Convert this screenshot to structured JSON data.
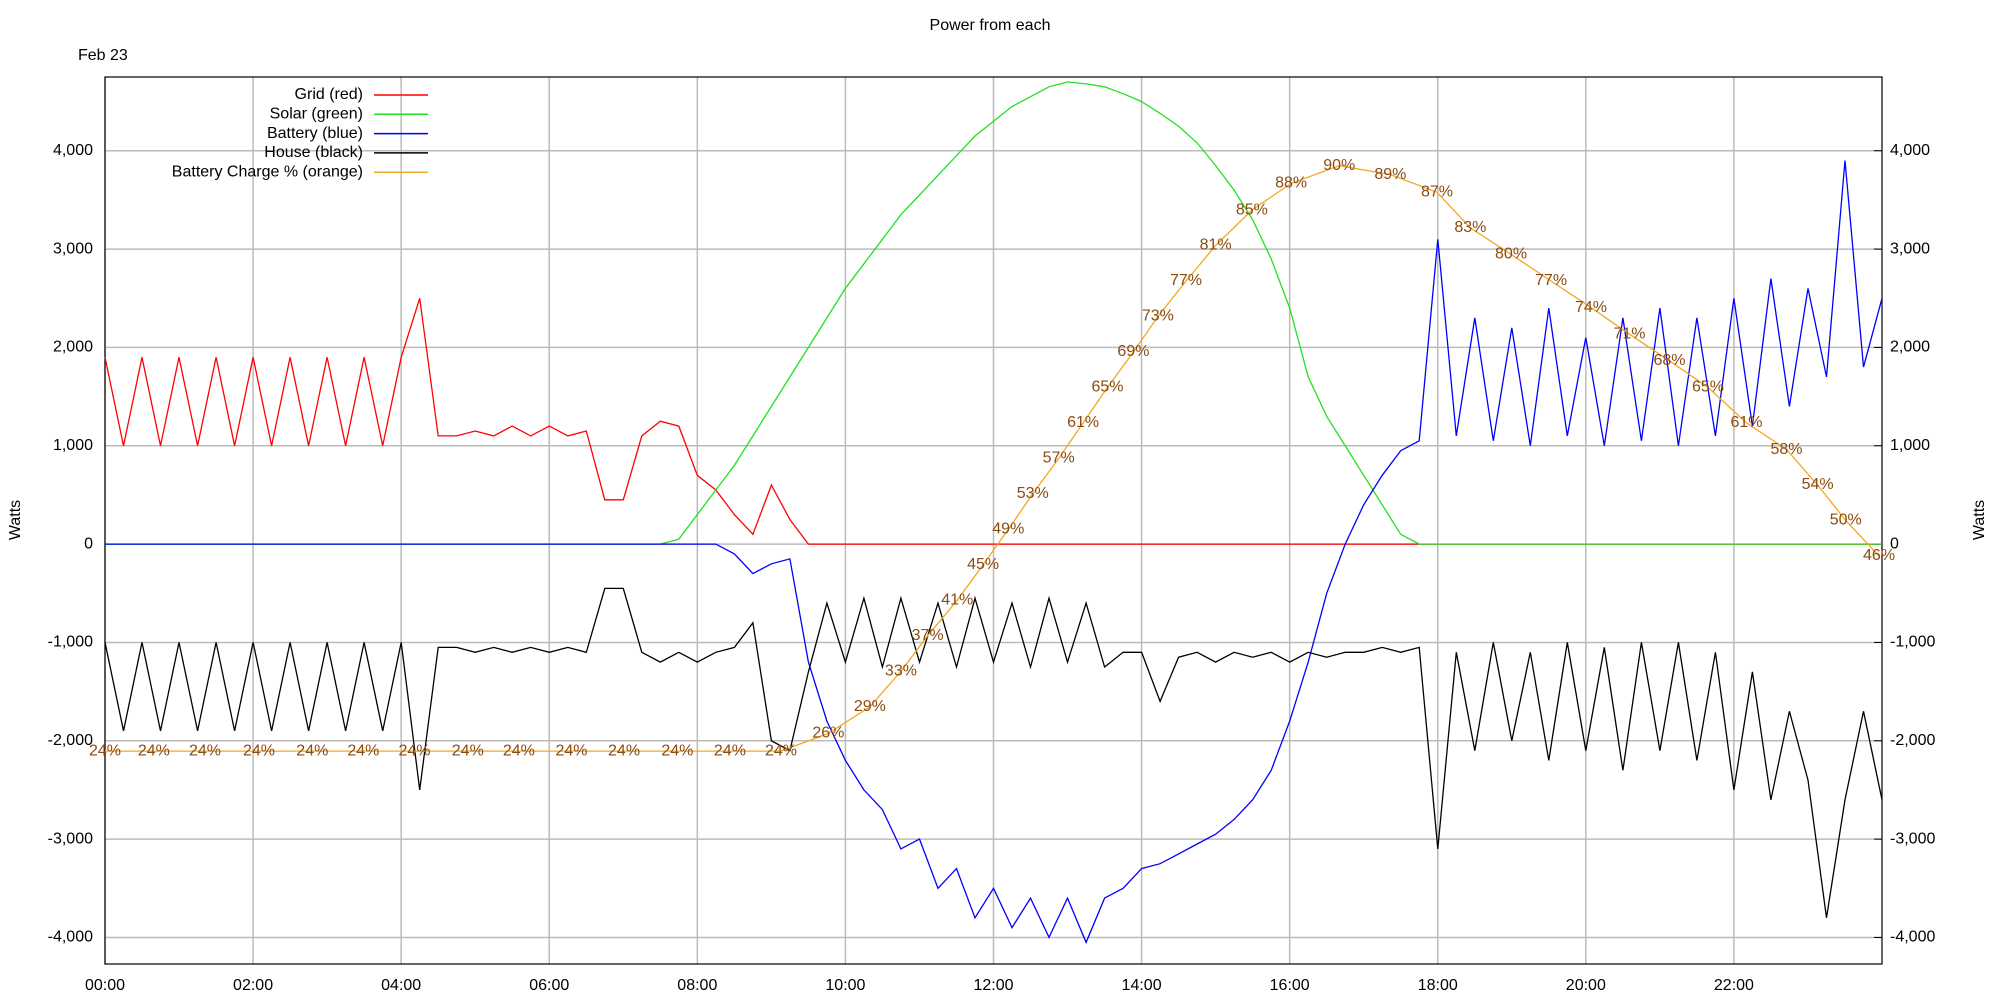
{
  "chart_data": {
    "type": "line",
    "title": "Power from each",
    "subtitle": "Feb 23",
    "ylabel": "Watts",
    "y2label": "Watts",
    "xlim": [
      0,
      24
    ],
    "xticks": [
      {
        "value": 0,
        "label": "00:00"
      },
      {
        "value": 2,
        "label": "02:00"
      },
      {
        "value": 4,
        "label": "04:00"
      },
      {
        "value": 6,
        "label": "06:00"
      },
      {
        "value": 8,
        "label": "08:00"
      },
      {
        "value": 10,
        "label": "10:00"
      },
      {
        "value": 12,
        "label": "12:00"
      },
      {
        "value": 14,
        "label": "14:00"
      },
      {
        "value": 16,
        "label": "16:00"
      },
      {
        "value": 18,
        "label": "18:00"
      },
      {
        "value": 20,
        "label": "20:00"
      },
      {
        "value": 22,
        "label": "22:00"
      }
    ],
    "ylim": [
      -4270,
      4750
    ],
    "yticks": [
      {
        "value": -4000,
        "label": "-4,000"
      },
      {
        "value": -3000,
        "label": "-3,000"
      },
      {
        "value": -2000,
        "label": "-2,000"
      },
      {
        "value": -1000,
        "label": "-1,000"
      },
      0,
      {
        "value": 1000,
        "label": "1,000"
      },
      {
        "value": 2000,
        "label": "2,000"
      },
      {
        "value": 3000,
        "label": "3,000"
      },
      {
        "value": 4000,
        "label": "4,000"
      }
    ],
    "y2lim": [
      -4270,
      4750
    ],
    "y2ticks": [
      {
        "value": -4000,
        "label": "-4,000"
      },
      {
        "value": -3000,
        "label": "-3,000"
      },
      {
        "value": -2000,
        "label": "-2,000"
      },
      {
        "value": -1000,
        "label": "-1,000"
      },
      0,
      {
        "value": 1000,
        "label": "1,000"
      },
      {
        "value": 2000,
        "label": "2,000"
      },
      {
        "value": 3000,
        "label": "3,000"
      },
      {
        "value": 4000,
        "label": "4,000"
      }
    ],
    "y3lim": [
      0,
      100
    ],
    "grid": true,
    "legend": "upper left",
    "x": [
      0,
      0.25,
      0.5,
      0.75,
      1,
      1.25,
      1.5,
      1.75,
      2,
      2.25,
      2.5,
      2.75,
      3,
      3.25,
      3.5,
      3.75,
      4,
      4.25,
      4.5,
      4.75,
      5,
      5.25,
      5.5,
      5.75,
      6,
      6.25,
      6.5,
      6.75,
      7,
      7.25,
      7.5,
      7.75,
      8,
      8.25,
      8.5,
      8.75,
      9,
      9.25,
      9.5,
      9.75,
      10,
      10.25,
      10.5,
      10.75,
      11,
      11.25,
      11.5,
      11.75,
      12,
      12.25,
      12.5,
      12.75,
      13,
      13.25,
      13.5,
      13.75,
      14,
      14.25,
      14.5,
      14.75,
      15,
      15.25,
      15.5,
      15.75,
      16,
      16.25,
      16.5,
      16.75,
      17,
      17.25,
      17.5,
      17.75,
      18,
      18.25,
      18.5,
      18.75,
      19,
      19.25,
      19.5,
      19.75,
      20,
      20.25,
      20.5,
      20.75,
      21,
      21.25,
      21.5,
      21.75,
      22,
      22.25,
      22.5,
      22.75,
      23,
      23.25,
      23.5,
      23.75,
      24
    ],
    "series": [
      {
        "name": "Grid (red)",
        "color": "#ff0000",
        "values": [
          1900,
          1000,
          1900,
          1000,
          1900,
          1000,
          1900,
          1000,
          1900,
          1000,
          1900,
          1000,
          1900,
          1000,
          1900,
          1000,
          1900,
          2500,
          1100,
          1100,
          1150,
          1100,
          1200,
          1100,
          1200,
          1100,
          1150,
          450,
          450,
          1100,
          1250,
          1200,
          700,
          550,
          300,
          100,
          600,
          250,
          0,
          0,
          0,
          0,
          0,
          0,
          0,
          0,
          0,
          0,
          0,
          0,
          0,
          0,
          0,
          0,
          0,
          0,
          0,
          0,
          0,
          0,
          0,
          0,
          0,
          0,
          0,
          0,
          0,
          0,
          0,
          0,
          0,
          0,
          0,
          0,
          0,
          0,
          0,
          0,
          0,
          0,
          0,
          0,
          0,
          0,
          0,
          0,
          0,
          0,
          0,
          0,
          0,
          0,
          0,
          0,
          0,
          0,
          0
        ]
      },
      {
        "name": "Solar (green)",
        "color": "#22e022",
        "values": [
          0,
          0,
          0,
          0,
          0,
          0,
          0,
          0,
          0,
          0,
          0,
          0,
          0,
          0,
          0,
          0,
          0,
          0,
          0,
          0,
          0,
          0,
          0,
          0,
          0,
          0,
          0,
          0,
          0,
          0,
          0,
          50,
          300,
          550,
          800,
          1100,
          1400,
          1700,
          2000,
          2300,
          2600,
          2850,
          3100,
          3350,
          3550,
          3750,
          3950,
          4150,
          4300,
          4450,
          4550,
          4650,
          4700,
          4680,
          4650,
          4580,
          4500,
          4380,
          4250,
          4080,
          3850,
          3600,
          3300,
          2900,
          2400,
          1700,
          1300,
          1000,
          700,
          400,
          100,
          0,
          0,
          0,
          0,
          0,
          0,
          0,
          0,
          0,
          0,
          0,
          0,
          0,
          0,
          0,
          0,
          0,
          0,
          0,
          0,
          0,
          0,
          0,
          0,
          0,
          0
        ]
      },
      {
        "name": "Battery (blue)",
        "color": "#0000ff",
        "values": [
          0,
          0,
          0,
          0,
          0,
          0,
          0,
          0,
          0,
          0,
          0,
          0,
          0,
          0,
          0,
          0,
          0,
          0,
          0,
          0,
          0,
          0,
          0,
          0,
          0,
          0,
          0,
          0,
          0,
          0,
          0,
          0,
          0,
          0,
          -100,
          -300,
          -200,
          -150,
          -1200,
          -1800,
          -2200,
          -2500,
          -2700,
          -3100,
          -3000,
          -3500,
          -3300,
          -3800,
          -3500,
          -3900,
          -3600,
          -4000,
          -3600,
          -4050,
          -3600,
          -3500,
          -3300,
          -3250,
          -3150,
          -3050,
          -2950,
          -2800,
          -2600,
          -2300,
          -1800,
          -1200,
          -500,
          0,
          400,
          700,
          950,
          1050,
          3100,
          1100,
          2300,
          1050,
          2200,
          1000,
          2400,
          1100,
          2100,
          1000,
          2300,
          1050,
          2400,
          1000,
          2300,
          1100,
          2500,
          1200,
          2700,
          1400,
          2600,
          1700,
          3900,
          1800,
          2500
        ]
      },
      {
        "name": "House (black)",
        "color": "#000000",
        "values": [
          -1000,
          -1900,
          -1000,
          -1900,
          -1000,
          -1900,
          -1000,
          -1900,
          -1000,
          -1900,
          -1000,
          -1900,
          -1000,
          -1900,
          -1000,
          -1900,
          -1000,
          -2500,
          -1050,
          -1050,
          -1100,
          -1050,
          -1100,
          -1050,
          -1100,
          -1050,
          -1100,
          -450,
          -450,
          -1100,
          -1200,
          -1100,
          -1200,
          -1100,
          -1050,
          -800,
          -2000,
          -2100,
          -1300,
          -600,
          -1200,
          -550,
          -1250,
          -550,
          -1200,
          -600,
          -1250,
          -550,
          -1200,
          -600,
          -1250,
          -550,
          -1200,
          -600,
          -1250,
          -1100,
          -1100,
          -1600,
          -1150,
          -1100,
          -1200,
          -1100,
          -1150,
          -1100,
          -1200,
          -1100,
          -1150,
          -1100,
          -1100,
          -1050,
          -1100,
          -1050,
          -3100,
          -1100,
          -2100,
          -1000,
          -2000,
          -1100,
          -2200,
          -1000,
          -2100,
          -1050,
          -2300,
          -1000,
          -2100,
          -1000,
          -2200,
          -1100,
          -2500,
          -1300,
          -2600,
          -1700,
          -2400,
          -3800,
          -2600,
          -1700,
          -2600
        ]
      },
      {
        "name": "Battery Charge % (orange)",
        "color": "#f5a623",
        "axis": "y3",
        "x": [
          0,
          0.66,
          1.35,
          2.08,
          2.8,
          3.49,
          4.18,
          4.9,
          5.59,
          6.3,
          7.01,
          7.73,
          8.44,
          9.13,
          9.77,
          10.33,
          10.75,
          11.11,
          11.51,
          11.86,
          12.2,
          12.53,
          12.88,
          13.21,
          13.54,
          13.89,
          14.22,
          14.6,
          15,
          15.49,
          16.02,
          16.67,
          17.36,
          17.99,
          18.44,
          18.99,
          19.53,
          20.07,
          20.59,
          21.13,
          21.65,
          22.17,
          22.71,
          23.13,
          23.51,
          23.96
        ],
        "values": [
          24,
          24,
          24,
          24,
          24,
          24,
          24,
          24,
          24,
          24,
          24,
          24,
          24,
          24,
          26,
          29,
          33,
          37,
          41,
          45,
          49,
          53,
          57,
          61,
          65,
          69,
          73,
          77,
          81,
          85,
          88,
          90,
          89,
          87,
          83,
          80,
          77,
          74,
          71,
          68,
          65,
          61,
          58,
          54,
          50,
          46
        ],
        "value_labels": [
          "24%",
          "24%",
          "24%",
          "24%",
          "24%",
          "24%",
          "24%",
          "24%",
          "24%",
          "24%",
          "24%",
          "24%",
          "24%",
          "24%",
          "26%",
          "29%",
          "33%",
          "37%",
          "41%",
          "45%",
          "49%",
          "53%",
          "57%",
          "61%",
          "65%",
          "69%",
          "73%",
          "77%",
          "81%",
          "85%",
          "88%",
          "90%",
          "89%",
          "87%",
          "83%",
          "80%",
          "77%",
          "74%",
          "71%",
          "68%",
          "65%",
          "61%",
          "58%",
          "54%",
          "50%",
          "46%"
        ]
      }
    ]
  }
}
